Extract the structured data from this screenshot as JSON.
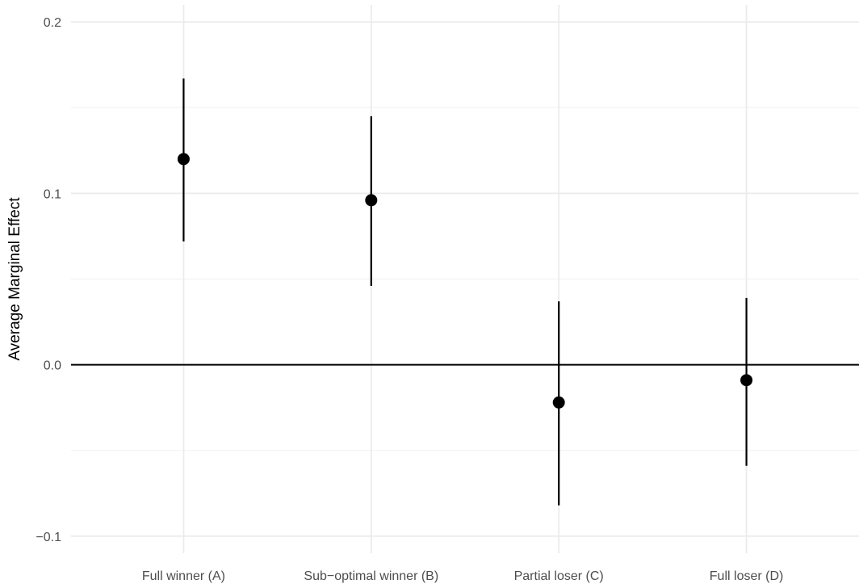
{
  "chart_data": {
    "type": "scatter",
    "title": "",
    "xlabel": "",
    "ylabel": "Average Marginal Effect",
    "categories": [
      "Full winner (A)",
      "Sub−optimal winner (B)",
      "Partial loser (C)",
      "Full loser (D)"
    ],
    "series": [
      {
        "estimate": [
          0.12,
          0.096,
          -0.022,
          -0.009
        ],
        "lower": [
          0.072,
          0.046,
          -0.082,
          -0.059
        ],
        "upper": [
          0.167,
          0.145,
          0.037,
          0.039
        ]
      }
    ],
    "y_ticks": [
      -0.1,
      0.0,
      0.1,
      0.2
    ],
    "y_tick_labels": [
      "−0.1",
      "0.0",
      "0.1",
      "0.2"
    ],
    "ylim": [
      -0.11,
      0.21
    ],
    "reference_line": 0,
    "grid": true,
    "legend": "none",
    "colors": {
      "points": "#000000",
      "grid_major": "#ebebeb",
      "grid_minor": "#f2f2f2",
      "tick_text": "#4d4d4d",
      "reference_line": "#000000"
    }
  }
}
